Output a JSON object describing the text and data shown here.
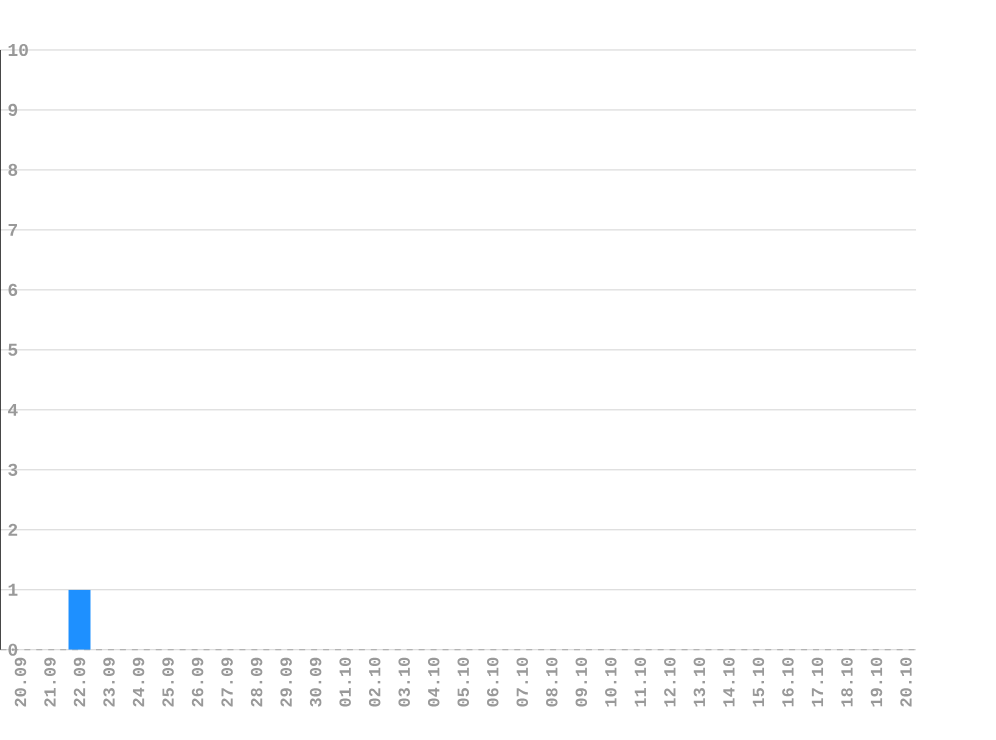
{
  "chart_data": {
    "type": "bar",
    "categories": [
      "20.09",
      "21.09",
      "22.09",
      "23.09",
      "24.09",
      "25.09",
      "26.09",
      "27.09",
      "28.09",
      "29.09",
      "30.09",
      "01.10",
      "02.10",
      "03.10",
      "04.10",
      "05.10",
      "06.10",
      "07.10",
      "08.10",
      "09.10",
      "10.10",
      "11.10",
      "12.10",
      "13.10",
      "14.10",
      "15.10",
      "16.10",
      "17.10",
      "18.10",
      "19.10",
      "20.10"
    ],
    "values": [
      0,
      0,
      1,
      0,
      0,
      0,
      0,
      0,
      0,
      0,
      0,
      0,
      0,
      0,
      0,
      0,
      0,
      0,
      0,
      0,
      0,
      0,
      0,
      0,
      0,
      0,
      0,
      0,
      0,
      0,
      0
    ],
    "color": "#1e90ff",
    "ylim": [
      0,
      10
    ],
    "yticks": [
      0,
      1,
      2,
      3,
      4,
      5,
      6,
      7,
      8,
      9,
      10
    ],
    "grid": "y"
  }
}
